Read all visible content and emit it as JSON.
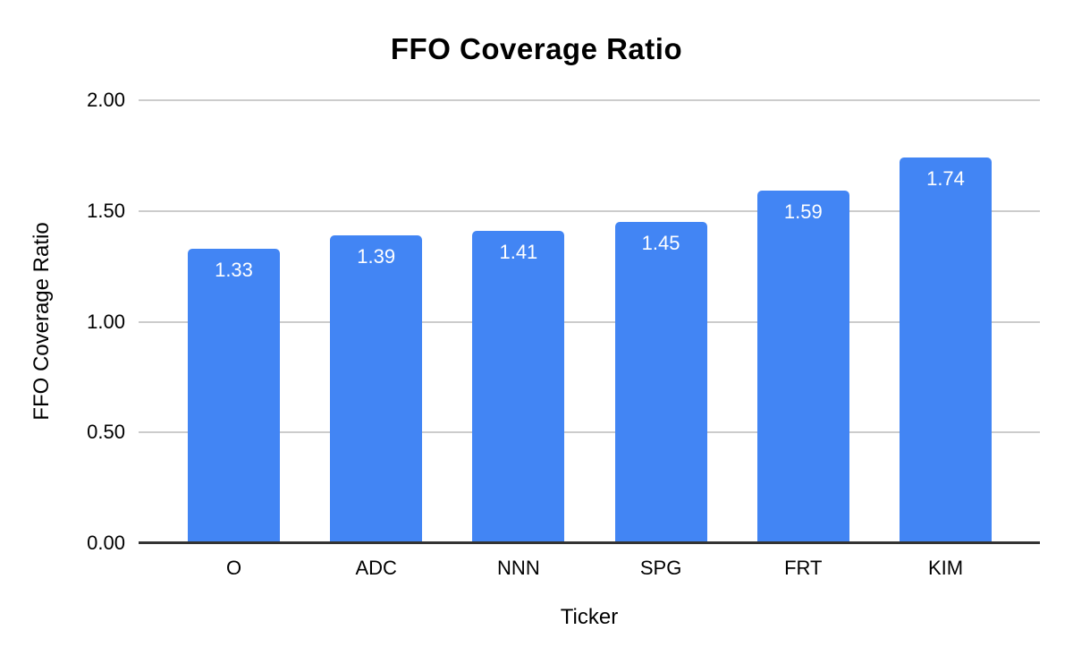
{
  "chart_data": {
    "type": "bar",
    "title": "FFO Coverage Ratio",
    "xlabel": "Ticker",
    "ylabel": "FFO Coverage Ratio",
    "categories": [
      "O",
      "ADC",
      "NNN",
      "SPG",
      "FRT",
      "KIM"
    ],
    "values": [
      1.33,
      1.39,
      1.41,
      1.45,
      1.59,
      1.74
    ],
    "value_labels": [
      "1.33",
      "1.39",
      "1.41",
      "1.45",
      "1.59",
      "1.74"
    ],
    "ylim": [
      0,
      2
    ],
    "yticks": [
      0,
      0.5,
      1,
      1.5,
      2
    ],
    "ytick_labels": [
      "0.00",
      "0.50",
      "1.00",
      "1.50",
      "2.00"
    ],
    "grid": true,
    "legend": "none",
    "colors": {
      "bar": "#4285F4",
      "bar_value_label": "#ffffff",
      "gridline": "#cccccc",
      "baseline": "#333333",
      "text": "#000000",
      "background": "#ffffff"
    }
  }
}
